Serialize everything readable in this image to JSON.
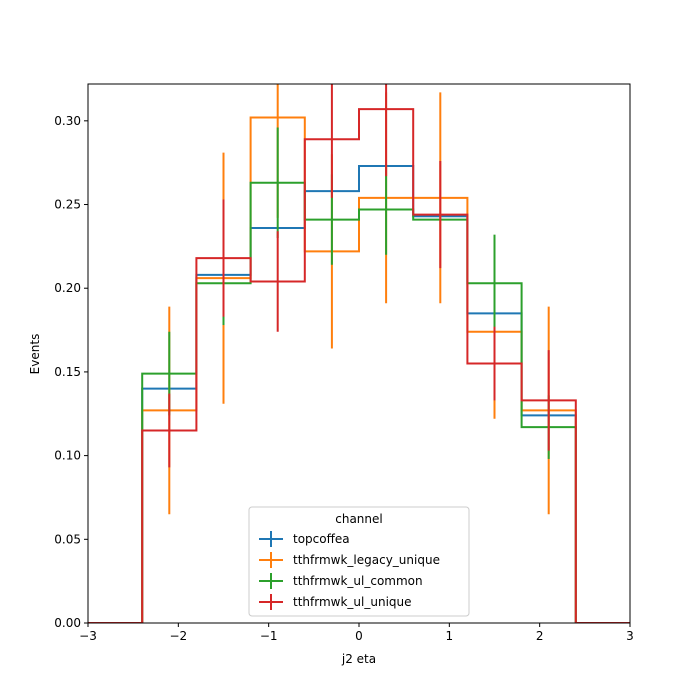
{
  "chart_data": {
    "type": "step",
    "xlabel": "j2 eta",
    "ylabel": "Events",
    "xlim": [
      -3,
      3
    ],
    "ylim": [
      0,
      0.322
    ],
    "x_ticks": [
      -3,
      -2,
      -1,
      0,
      1,
      2,
      3
    ],
    "x_tick_labels": [
      "−3",
      "−2",
      "−1",
      "0",
      "1",
      "2",
      "3"
    ],
    "y_ticks": [
      0.0,
      0.05,
      0.1,
      0.15,
      0.2,
      0.25,
      0.3
    ],
    "y_tick_labels": [
      "0.00",
      "0.05",
      "0.10",
      "0.15",
      "0.20",
      "0.25",
      "0.30"
    ],
    "bin_edges": [
      -3.0,
      -2.4,
      -1.8,
      -1.2,
      -0.6,
      0.0,
      0.6,
      1.2,
      1.8,
      2.4,
      3.0
    ],
    "legend": {
      "title": "channel",
      "placement": "lower center"
    },
    "grid": false,
    "series": [
      {
        "name": "topcoffea",
        "color": "#1f77b4",
        "values": [
          0.0,
          0.14,
          0.208,
          0.236,
          0.258,
          0.273,
          0.243,
          0.185,
          0.124,
          0.0
        ],
        "errors": [
          0.0,
          0.0,
          0.0,
          0.0,
          0.0,
          0.0,
          0.0,
          0.0,
          0.0,
          0.0
        ]
      },
      {
        "name": "tthfrmwk_legacy_unique",
        "color": "#ff7f0e",
        "values": [
          0.0,
          0.127,
          0.206,
          0.302,
          0.222,
          0.254,
          0.254,
          0.174,
          0.127,
          0.0
        ],
        "errors": [
          0.0,
          0.062,
          0.075,
          0.06,
          0.058,
          0.063,
          0.063,
          0.052,
          0.062,
          0.0
        ]
      },
      {
        "name": "tthfrmwk_ul_common",
        "color": "#2ca02c",
        "values": [
          0.0,
          0.149,
          0.203,
          0.263,
          0.241,
          0.247,
          0.241,
          0.203,
          0.117,
          0.0
        ],
        "errors": [
          0.0,
          0.025,
          0.025,
          0.033,
          0.027,
          0.027,
          0.0,
          0.029,
          0.019,
          0.0
        ]
      },
      {
        "name": "tthfrmwk_ul_unique",
        "color": "#d62728",
        "values": [
          0.0,
          0.115,
          0.218,
          0.204,
          0.289,
          0.307,
          0.244,
          0.155,
          0.133,
          0.0
        ],
        "errors": [
          0.0,
          0.022,
          0.035,
          0.03,
          0.035,
          0.04,
          0.032,
          0.022,
          0.03,
          0.0
        ]
      }
    ]
  }
}
